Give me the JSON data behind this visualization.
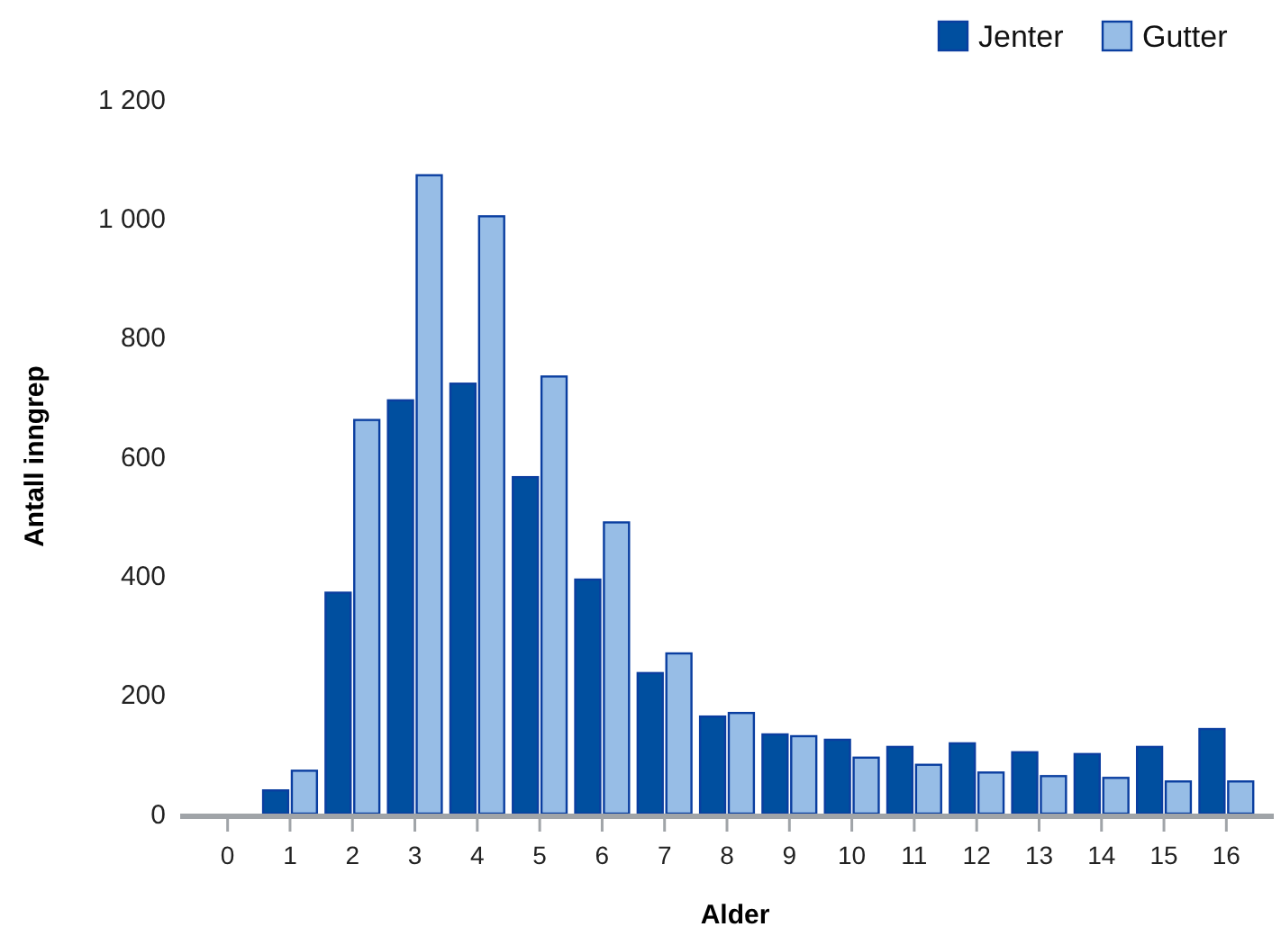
{
  "chart_data": {
    "type": "bar",
    "xlabel": "Alder",
    "ylabel": "Antall inngrep",
    "categories": [
      "0",
      "1",
      "2",
      "3",
      "4",
      "5",
      "6",
      "7",
      "8",
      "9",
      "10",
      "11",
      "12",
      "13",
      "14",
      "15",
      "16"
    ],
    "series": [
      {
        "name": "Jenter",
        "color": "#004f9f",
        "values": [
          0,
          39,
          371,
          694,
          722,
          565,
          393,
          236,
          163,
          133,
          124,
          112,
          118,
          103,
          100,
          112,
          142
        ]
      },
      {
        "name": "Gutter",
        "color": "#97bde6",
        "values": [
          0,
          72,
          661,
          1072,
          1003,
          734,
          489,
          269,
          169,
          130,
          94,
          82,
          69,
          63,
          60,
          54,
          54
        ]
      }
    ],
    "ylim": [
      0,
      1200
    ],
    "yticks": [
      0,
      {
        "value": 200,
        "label": "200"
      },
      {
        "value": 400,
        "label": "400"
      },
      {
        "value": 600,
        "label": "600"
      },
      {
        "value": 800,
        "label": "800"
      },
      {
        "value": 1000,
        "label": "1 000"
      },
      {
        "value": 1200,
        "label": "1 200"
      }
    ],
    "grid": false,
    "legend": "top right"
  }
}
